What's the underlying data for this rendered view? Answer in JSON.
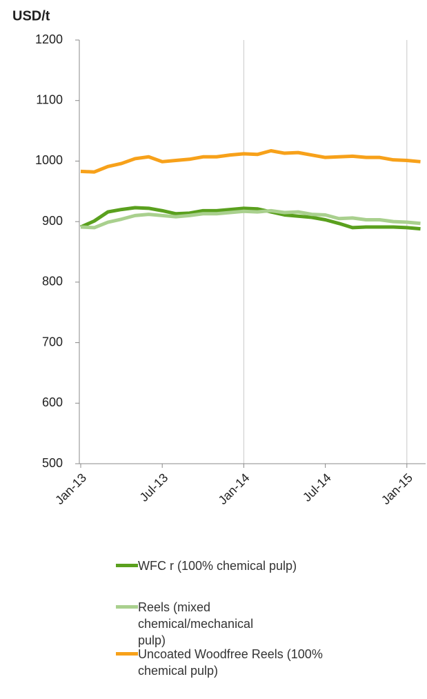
{
  "chart_data": {
    "type": "line",
    "y_axis_label": "USD/t",
    "categories": [
      "Jan-13",
      null,
      null,
      null,
      null,
      null,
      "Jul-13",
      null,
      null,
      null,
      null,
      null,
      "Jan-14",
      null,
      null,
      null,
      null,
      null,
      "Jul-14",
      null,
      null,
      null,
      null,
      null,
      "Jan-15",
      null
    ],
    "series": [
      {
        "name": "WFC r (100%  chemical pulp)",
        "color": "#5aa01e",
        "values": [
          891,
          901,
          916,
          920,
          923,
          922,
          918,
          913,
          914,
          918,
          918,
          920,
          922,
          921,
          916,
          911,
          909,
          907,
          903,
          897,
          890,
          891,
          891,
          891,
          890,
          888
        ]
      },
      {
        "name": "Reels (mixed chemical/mechanical pulp)",
        "color": "#a9d08e",
        "values": [
          891,
          890,
          899,
          904,
          910,
          912,
          910,
          908,
          910,
          913,
          913,
          915,
          917,
          916,
          918,
          915,
          916,
          912,
          911,
          905,
          906,
          903,
          903,
          900,
          899,
          897
        ]
      },
      {
        "name": "Uncoated Woodfree Reels (100% chemical pulp)",
        "color": "#f7a11a",
        "values": [
          983,
          982,
          991,
          996,
          1004,
          1007,
          999,
          1001,
          1003,
          1007,
          1007,
          1010,
          1012,
          1011,
          1017,
          1013,
          1014,
          1010,
          1006,
          1007,
          1008,
          1006,
          1006,
          1002,
          1001,
          999
        ]
      }
    ],
    "ylim": [
      500,
      1200
    ],
    "yticks": [
      500,
      600,
      700,
      800,
      900,
      1000,
      1100,
      1200
    ]
  }
}
